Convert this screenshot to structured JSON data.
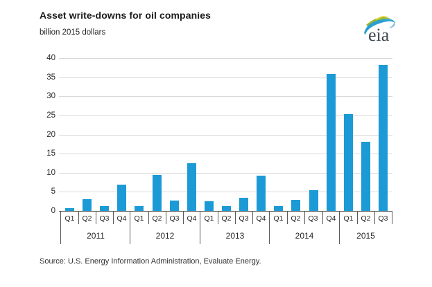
{
  "header": {
    "title": "Asset write-downs for oil companies",
    "subtitle": "billion 2015 dollars"
  },
  "logo": {
    "text": "eia",
    "name": "eia-logo",
    "swoosh_green": "#9ab827",
    "swoosh_blue": "#2a9fd4"
  },
  "source": "Source:  U.S. Energy Information Administration, Evaluate Energy.",
  "chart_data": {
    "type": "bar",
    "title": "Asset write-downs for oil companies",
    "xlabel": "",
    "ylabel": "billion 2015 dollars",
    "ylim": [
      0,
      40
    ],
    "ytick_step": 5,
    "grid": true,
    "legend": false,
    "bar_color": "#1b9ad6",
    "categories": [
      "2011 Q1",
      "2011 Q2",
      "2011 Q3",
      "2011 Q4",
      "2012 Q1",
      "2012 Q2",
      "2012 Q3",
      "2012 Q4",
      "2013 Q1",
      "2013 Q2",
      "2013 Q3",
      "2013 Q4",
      "2014 Q1",
      "2014 Q2",
      "2014 Q3",
      "2014 Q4",
      "2015 Q1",
      "2015 Q2",
      "2015 Q3"
    ],
    "groups": [
      {
        "year": "2011",
        "quarters": [
          "Q1",
          "Q2",
          "Q3",
          "Q4"
        ],
        "values": [
          0.8,
          3.1,
          1.2,
          6.8
        ]
      },
      {
        "year": "2012",
        "quarters": [
          "Q1",
          "Q2",
          "Q3",
          "Q4"
        ],
        "values": [
          1.2,
          9.4,
          2.7,
          12.5
        ]
      },
      {
        "year": "2013",
        "quarters": [
          "Q1",
          "Q2",
          "Q3",
          "Q4"
        ],
        "values": [
          2.5,
          1.2,
          3.5,
          9.3
        ]
      },
      {
        "year": "2014",
        "quarters": [
          "Q1",
          "Q2",
          "Q3",
          "Q4"
        ],
        "values": [
          1.2,
          2.9,
          5.5,
          35.8
        ]
      },
      {
        "year": "2015",
        "quarters": [
          "Q1",
          "Q2",
          "Q3"
        ],
        "values": [
          25.3,
          18.1,
          38.2
        ]
      }
    ]
  }
}
